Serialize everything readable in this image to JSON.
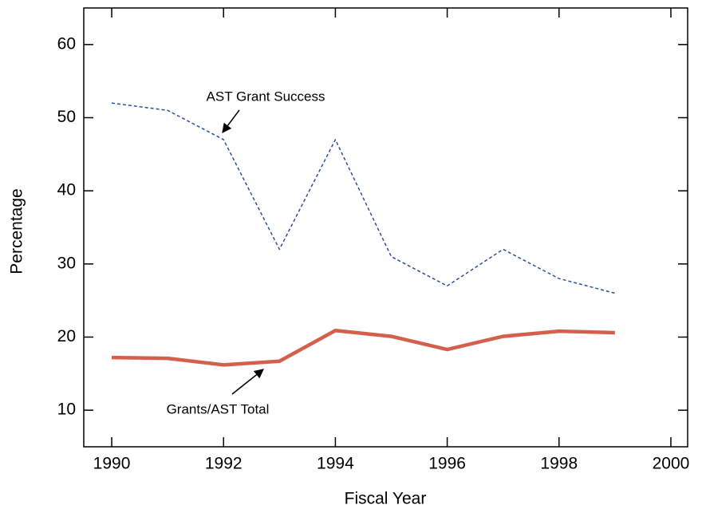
{
  "chart_data": {
    "type": "line",
    "x_label": "Fiscal Year",
    "y_label": "Percentage",
    "x": [
      1990,
      1991,
      1992,
      1993,
      1994,
      1995,
      1996,
      1997,
      1998,
      1999
    ],
    "series": [
      {
        "name": "AST Grant Success",
        "color": "#2b4f9e",
        "style": "dashed",
        "values": [
          52,
          51,
          47,
          32,
          47,
          31,
          27,
          32,
          28,
          26
        ]
      },
      {
        "name": "Grants/AST Total",
        "color": "#d4604c",
        "style": "solid",
        "values": [
          17.2,
          17.1,
          16.2,
          16.7,
          20.9,
          20.1,
          18.3,
          20.1,
          20.8,
          20.6
        ]
      }
    ],
    "xlim": [
      1989.5,
      2000.3
    ],
    "xticks": [
      1990,
      1992,
      1994,
      1996,
      1998,
      2000
    ],
    "ylim": [
      5,
      65
    ],
    "yticks": [
      10,
      20,
      30,
      40,
      50,
      60
    ],
    "grid": false
  }
}
